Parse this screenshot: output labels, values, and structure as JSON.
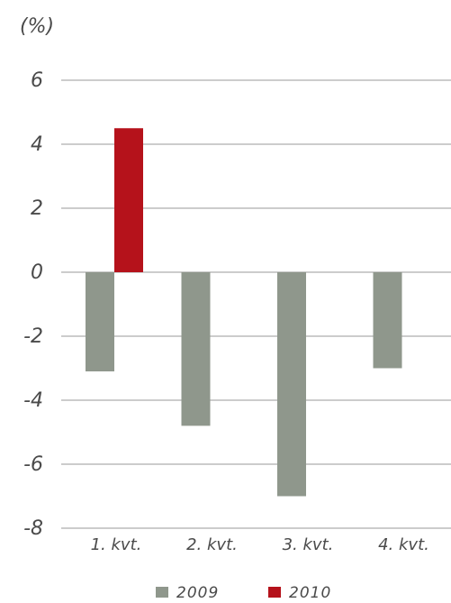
{
  "chart_data": {
    "type": "bar",
    "unit_label": "(%)",
    "categories": [
      "1. kvt.",
      "2. kvt.",
      "3. kvt.",
      "4. kvt."
    ],
    "series": [
      {
        "name": "2009",
        "color": "#8f978c",
        "values": [
          -3.1,
          -4.8,
          -7.0,
          -3.0
        ]
      },
      {
        "name": "2010",
        "color": "#b5121b",
        "values": [
          4.5,
          null,
          null,
          null
        ]
      }
    ],
    "ylim": [
      -8,
      6
    ],
    "yticks": [
      6,
      4,
      2,
      0,
      -2,
      -4,
      -6,
      -8
    ],
    "ytick_labels": [
      "6",
      "4",
      "2",
      "0",
      "-2",
      "-4",
      "-6",
      "-8"
    ],
    "grid": true,
    "legend_position": "bottom"
  }
}
